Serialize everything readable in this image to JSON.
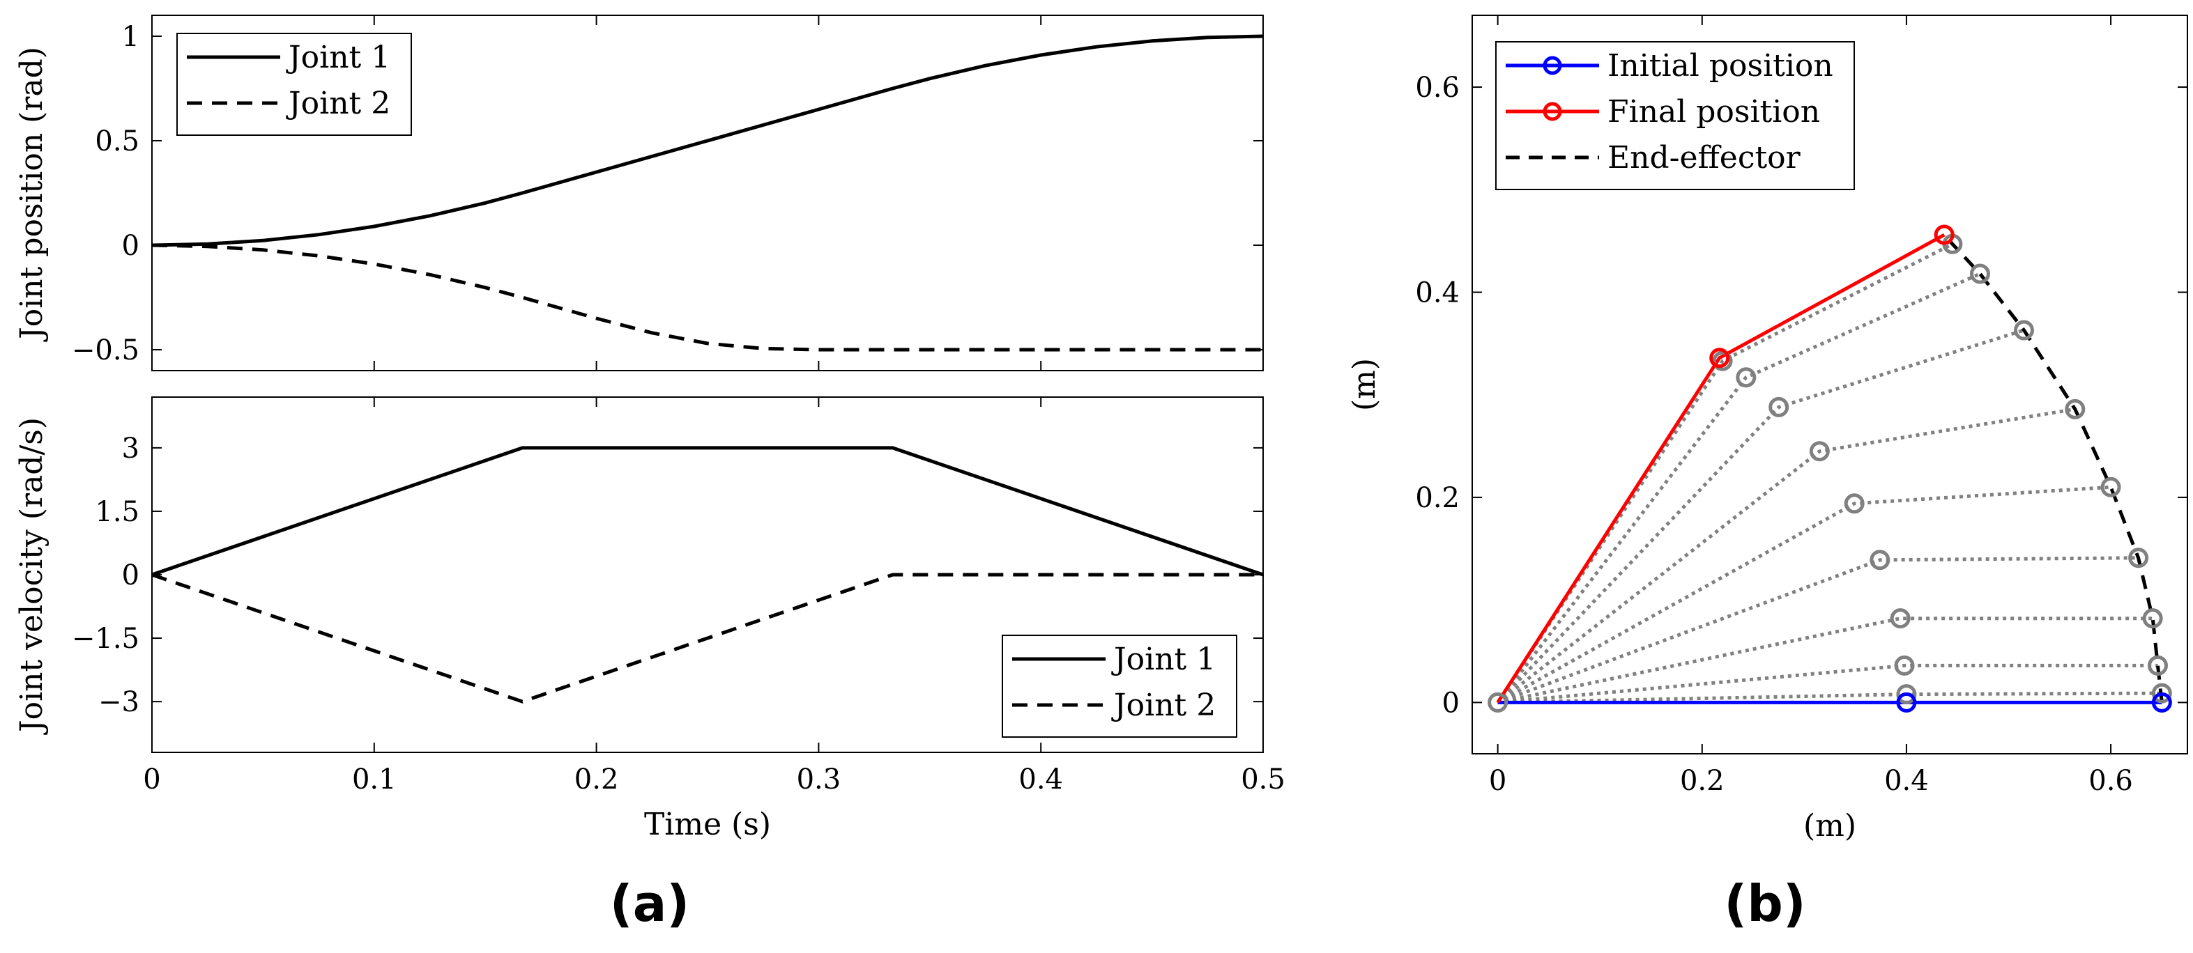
{
  "chart_data": [
    {
      "id": "a-top",
      "type": "line",
      "title": "",
      "xlabel": "",
      "ylabel": "Joint position (rad)",
      "xlim": [
        0,
        0.5
      ],
      "ylim": [
        -0.6,
        1.1
      ],
      "xticks": [
        0,
        0.1,
        0.2,
        0.3,
        0.4,
        0.5
      ],
      "yticks": [
        -0.5,
        0,
        0.5,
        1
      ],
      "ytick_labels": [
        "−0.5",
        "0",
        "0.5",
        "1"
      ],
      "legend": {
        "placement": "top-left",
        "entries": [
          "Joint 1",
          "Joint 2"
        ]
      },
      "series": [
        {
          "name": "Joint 1",
          "style": "solid",
          "x": [
            0,
            0.025,
            0.05,
            0.075,
            0.1,
            0.125,
            0.15,
            0.1667,
            0.2,
            0.25,
            0.3,
            0.3333,
            0.35,
            0.375,
            0.4,
            0.425,
            0.45,
            0.475,
            0.5
          ],
          "y": [
            0,
            0.0056,
            0.0225,
            0.0506,
            0.09,
            0.1406,
            0.2025,
            0.25,
            0.35,
            0.5,
            0.65,
            0.75,
            0.7975,
            0.8594,
            0.91,
            0.9494,
            0.9775,
            0.9944,
            1.0
          ]
        },
        {
          "name": "Joint 2",
          "style": "dashed",
          "x": [
            0,
            0.025,
            0.05,
            0.075,
            0.1,
            0.125,
            0.15,
            0.1667,
            0.2,
            0.225,
            0.25,
            0.275,
            0.3,
            0.3333,
            0.5
          ],
          "y": [
            0,
            -0.0056,
            -0.0225,
            -0.0506,
            -0.09,
            -0.1406,
            -0.2025,
            -0.25,
            -0.35,
            -0.4194,
            -0.47,
            -0.4944,
            -0.5,
            -0.5,
            -0.5
          ]
        }
      ]
    },
    {
      "id": "a-bottom",
      "type": "line",
      "title": "",
      "xlabel": "Time (s)",
      "ylabel": "Joint velocity (rad/s)",
      "xlim": [
        0,
        0.5
      ],
      "ylim": [
        -4.2,
        4.2
      ],
      "xticks": [
        0,
        0.1,
        0.2,
        0.3,
        0.4,
        0.5
      ],
      "yticks": [
        -3,
        -1.5,
        0,
        1.5,
        3
      ],
      "ytick_labels": [
        "−3",
        "−1.5",
        "0",
        "1.5",
        "3"
      ],
      "legend": {
        "placement": "bottom-right",
        "entries": [
          "Joint 1",
          "Joint 2"
        ]
      },
      "series": [
        {
          "name": "Joint 1",
          "style": "solid",
          "x": [
            0,
            0.1667,
            0.3333,
            0.5
          ],
          "y": [
            0,
            3,
            3,
            0
          ]
        },
        {
          "name": "Joint 2",
          "style": "dashed",
          "x": [
            0,
            0.1667,
            0.3333,
            0.5
          ],
          "y": [
            0,
            -3,
            0,
            0
          ]
        }
      ]
    },
    {
      "id": "b",
      "type": "line",
      "title": "",
      "xlabel": "(m)",
      "ylabel": "(m)",
      "xlim": [
        -0.025,
        0.675
      ],
      "ylim": [
        -0.05,
        0.67
      ],
      "xticks": [
        0,
        0.2,
        0.4,
        0.6
      ],
      "yticks": [
        0,
        0.2,
        0.4,
        0.6
      ],
      "legend": {
        "placement": "top-left",
        "entries": [
          "Initial position",
          "Final position",
          "End-effector"
        ]
      },
      "arm_origin": [
        0,
        0
      ],
      "initial_position": {
        "elbow": [
          0.4,
          0
        ],
        "tip": [
          0.65,
          0
        ],
        "color": "#0000ff"
      },
      "final_position": {
        "elbow": [
          0.217,
          0.336
        ],
        "tip": [
          0.437,
          0.456
        ],
        "color": "#ff0000"
      },
      "intermediate_color": "#808080",
      "intermediate_poses": [
        {
          "elbow": [
            0.4,
            0.008
          ],
          "tip": [
            0.65,
            0.009
          ]
        },
        {
          "elbow": [
            0.398,
            0.036
          ],
          "tip": [
            0.646,
            0.036
          ]
        },
        {
          "elbow": [
            0.394,
            0.082
          ],
          "tip": [
            0.641,
            0.082
          ]
        },
        {
          "elbow": [
            0.374,
            0.139
          ],
          "tip": [
            0.627,
            0.141
          ]
        },
        {
          "elbow": [
            0.349,
            0.194
          ],
          "tip": [
            0.6,
            0.21
          ]
        },
        {
          "elbow": [
            0.315,
            0.245
          ],
          "tip": [
            0.565,
            0.286
          ]
        },
        {
          "elbow": [
            0.275,
            0.288
          ],
          "tip": [
            0.515,
            0.363
          ]
        },
        {
          "elbow": [
            0.243,
            0.317
          ],
          "tip": [
            0.472,
            0.418
          ]
        },
        {
          "elbow": [
            0.22,
            0.333
          ],
          "tip": [
            0.445,
            0.447
          ]
        }
      ],
      "end_effector_path": {
        "x": [
          0.65,
          0.646,
          0.641,
          0.627,
          0.6,
          0.565,
          0.515,
          0.472,
          0.445,
          0.437
        ],
        "y": [
          0,
          0.036,
          0.082,
          0.141,
          0.21,
          0.286,
          0.363,
          0.418,
          0.447,
          0.456
        ]
      }
    }
  ],
  "captions": {
    "a": "(a)",
    "b": "(b)"
  }
}
